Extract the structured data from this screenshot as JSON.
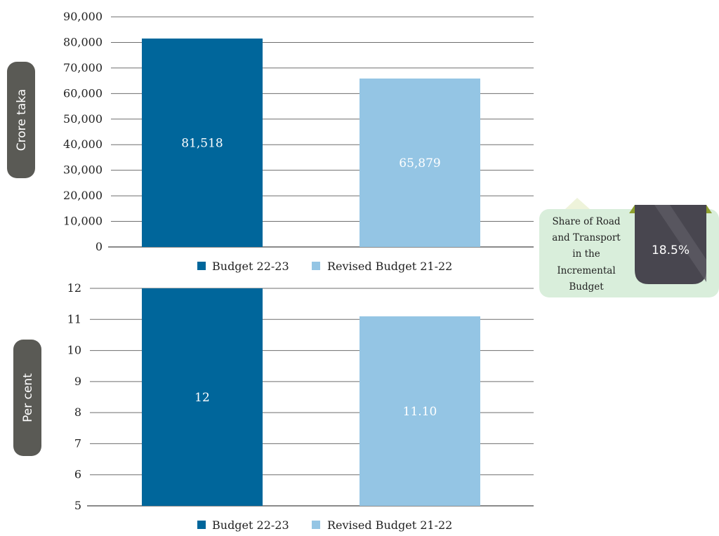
{
  "chart_data": [
    {
      "type": "bar",
      "ylabel": "Crore taka",
      "categories": [
        "Budget 22-23",
        "Revised Budget 21-22"
      ],
      "values": [
        81518,
        65879
      ],
      "data_labels": [
        "81,518",
        "65,879"
      ],
      "colors": [
        "#00669b",
        "#94c5e4"
      ],
      "ylim": [
        0,
        90000
      ],
      "yticks": [
        {
          "value": 0,
          "label": "0"
        },
        {
          "value": 10000,
          "label": "10,000"
        },
        {
          "value": 20000,
          "label": "20,000"
        },
        {
          "value": 30000,
          "label": "30,000"
        },
        {
          "value": 40000,
          "label": "40,000"
        },
        {
          "value": 50000,
          "label": "50,000"
        },
        {
          "value": 60000,
          "label": "60,000"
        },
        {
          "value": 70000,
          "label": "70,000"
        },
        {
          "value": 80000,
          "label": "80,000"
        },
        {
          "value": 90000,
          "label": "90,000"
        }
      ],
      "grid": true,
      "legend": [
        "Budget 22-23",
        "Revised Budget 21-22"
      ],
      "legend_position": "bottom"
    },
    {
      "type": "bar",
      "ylabel": "Per cent",
      "categories": [
        "Budget 22-23",
        "Revised Budget 21-22"
      ],
      "values": [
        12,
        11.1
      ],
      "data_labels": [
        "12",
        "11.10"
      ],
      "colors": [
        "#00669b",
        "#94c5e4"
      ],
      "ylim": [
        5,
        12
      ],
      "yticks": [
        {
          "value": 5,
          "label": "5"
        },
        {
          "value": 6,
          "label": "6"
        },
        {
          "value": 7,
          "label": "7"
        },
        {
          "value": 8,
          "label": "8"
        },
        {
          "value": 9,
          "label": "9"
        },
        {
          "value": 10,
          "label": "10"
        },
        {
          "value": 11,
          "label": "11"
        },
        {
          "value": 12,
          "label": "12"
        }
      ],
      "grid": true,
      "legend": [
        "Budget 22-23",
        "Revised Budget 21-22"
      ],
      "legend_position": "bottom"
    }
  ],
  "callout": {
    "text_lines": [
      "Share of Road",
      "and Transport",
      "in the",
      "Incremental",
      "Budget"
    ],
    "value": "18.5%",
    "colors": {
      "background": "#d9eedb",
      "badge": "#48464f",
      "accent": "#8ea02e"
    }
  }
}
